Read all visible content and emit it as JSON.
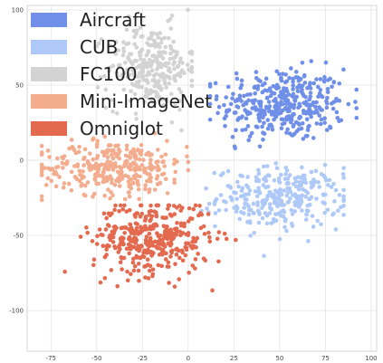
{
  "chart_data": {
    "type": "scatter",
    "title": "",
    "xlabel": "",
    "ylabel": "",
    "xlim": [
      -88,
      103
    ],
    "ylim": [
      -127,
      103
    ],
    "grid": true,
    "legend_placement": "top-left",
    "xticks": [
      -75,
      -50,
      -25,
      0,
      25,
      50,
      75,
      100
    ],
    "yticks": [
      -100,
      -50,
      0,
      50,
      100
    ],
    "series": [
      {
        "name": "Aircraft",
        "color": "#6f8fe8",
        "center": [
          52,
          37
        ],
        "spread": [
          17,
          12
        ],
        "count": 380,
        "range_x": [
          12,
          92
        ],
        "range_y": [
          8,
          86
        ]
      },
      {
        "name": "CUB",
        "color": "#aec9f8",
        "center": [
          50,
          -25
        ],
        "spread": [
          17,
          10
        ],
        "count": 300,
        "range_x": [
          5,
          85
        ],
        "range_y": [
          -68,
          -2
        ]
      },
      {
        "name": "FC100",
        "color": "#d3d3d3",
        "center": [
          -20,
          62
        ],
        "spread": [
          12,
          14
        ],
        "count": 280,
        "range_x": [
          -50,
          2
        ],
        "range_y": [
          18,
          100
        ]
      },
      {
        "name": "Mini-ImageNet",
        "color": "#f3ad8e",
        "center": [
          -40,
          -5
        ],
        "spread": [
          20,
          9
        ],
        "count": 330,
        "range_x": [
          -80,
          0
        ],
        "range_y": [
          -30,
          18
        ]
      },
      {
        "name": "Omniglot",
        "color": "#e36a4f",
        "center": [
          -20,
          -52
        ],
        "spread": [
          16,
          12
        ],
        "count": 380,
        "range_x": [
          -80,
          28
        ],
        "range_y": [
          -112,
          -30
        ]
      }
    ]
  }
}
